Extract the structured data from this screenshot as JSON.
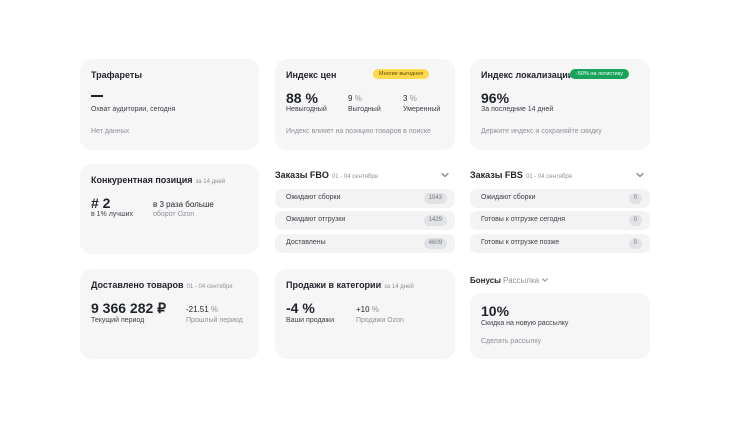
{
  "cards": {
    "templates": {
      "title": "Трафареты",
      "value_sub": "Охват аудитории, сегодня",
      "footer": "Нет данных"
    },
    "price_index": {
      "title": "Индекс цен",
      "badge": "Многие выгоднее",
      "main_value": "88 %",
      "main_label": "Невыгодный",
      "v2_num": "9",
      "v2_unit": "%",
      "v2_label": "Выгодный",
      "v3_num": "3",
      "v3_unit": "%",
      "v3_label": "Умеренный",
      "footer": "Индекс влияет на позицию товаров в поиске"
    },
    "localization": {
      "title": "Индекс локализации",
      "badge": "-50% на логистику",
      "main_value": "96%",
      "main_label": "За последние 14 дней",
      "footer": "Держите индекс и сохраняйте скидку"
    },
    "competitive": {
      "title": "Конкурентная позиция",
      "period": "за 14 дней",
      "main_value": "# 2",
      "main_label": "в 1% лучших",
      "side_value": "в 3 раза больше",
      "side_label": "оборот Ozon"
    },
    "delivered": {
      "title": "Доставлено товаров",
      "period": "01 - 04 сентября",
      "main_value": "9 366 282 ₽",
      "main_label": "Текущий период",
      "side_num": "-21.51",
      "side_unit": "%",
      "side_label": "Прошлый период"
    },
    "category_sales": {
      "title": "Продажи в категории",
      "period": "за 14 дней",
      "main_value": "-4 %",
      "main_label": "Ваши продажи",
      "side_num": "+10",
      "side_unit": "%",
      "side_label": "Продажи Ozon"
    },
    "bonuses": {
      "title": "Бонусы",
      "selector": "Рассылка",
      "main_value": "10%",
      "main_label": "Скидка на новую рассылку",
      "link": "Сделать рассылку"
    }
  },
  "fbo": {
    "title": "Заказы FBO",
    "period": "01 - 04 сентября",
    "rows": [
      {
        "label": "Ожидают сборки",
        "count": "1043"
      },
      {
        "label": "Ожидают отгрузки",
        "count": "1429"
      },
      {
        "label": "Доставлены",
        "count": "4609"
      }
    ]
  },
  "fbs": {
    "title": "Заказы FBS",
    "period": "01 - 04 сентября",
    "rows": [
      {
        "label": "Ожидают сборки",
        "count": "0"
      },
      {
        "label": "Готовы к отгрузке сегодня",
        "count": "0"
      },
      {
        "label": "Готовы к отгрузке позже",
        "count": "0"
      }
    ]
  }
}
